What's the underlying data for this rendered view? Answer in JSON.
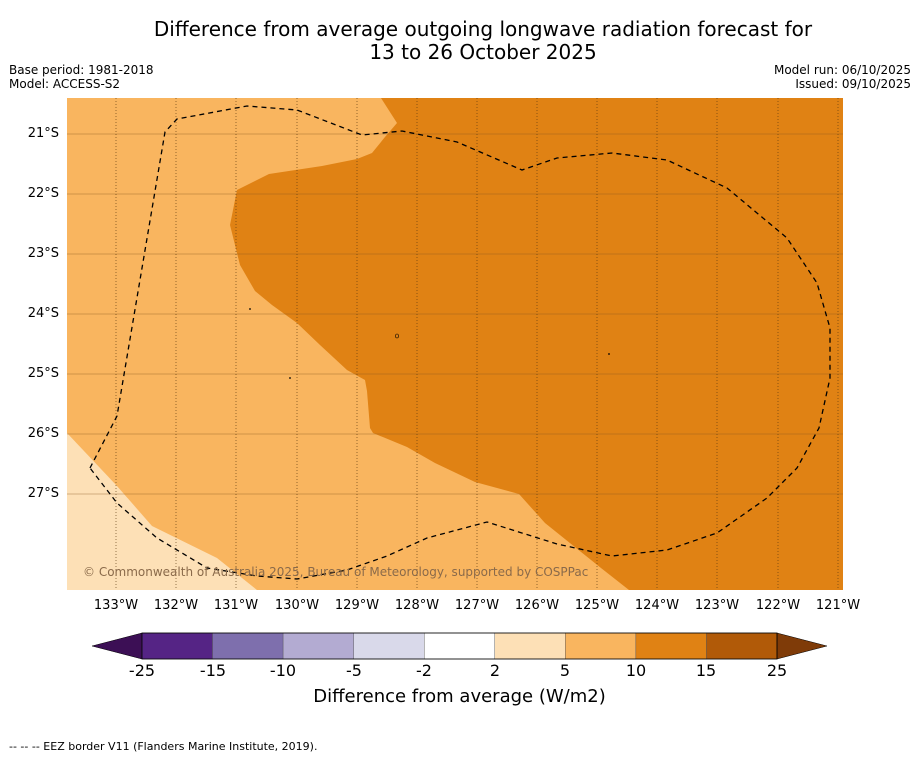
{
  "title": {
    "line1": "Difference from average outgoing longwave radiation forecast for",
    "line2": "13 to 26 October 2025"
  },
  "meta_left": {
    "base_period": "Base period: 1981-2018",
    "model": "Model: ACCESS-S2"
  },
  "meta_right": {
    "model_run": "Model run: 06/10/2025",
    "issued": "Issued: 09/10/2025"
  },
  "latitude_labels": [
    "21°S",
    "22°S",
    "23°S",
    "24°S",
    "25°S",
    "26°S",
    "27°S"
  ],
  "longitude_labels": [
    "133°W",
    "132°W",
    "131°W",
    "130°W",
    "129°W",
    "128°W",
    "127°W",
    "126°W",
    "125°W",
    "124°W",
    "123°W",
    "122°W",
    "121°W"
  ],
  "copyright": "© Commonwealth of Australia 2025, Bureau of Meteorology, supported by COSPPac",
  "colorbar": {
    "ticks": [
      "-25",
      "-15",
      "-10",
      "-5",
      "-2",
      "2",
      "5",
      "10",
      "15",
      "25"
    ],
    "colors": [
      "#3c0f55",
      "#552485",
      "#7e6fad",
      "#b3abd2",
      "#d9d9ea",
      "#ffffff",
      "#fde0b6",
      "#f9b55f",
      "#e08214",
      "#b15a08",
      "#7f3b08"
    ],
    "label": "Difference from average (W/m2)"
  },
  "legend": {
    "eez": "--  --  -- EEZ border V11 (Flanders Marine Institute, 2019)."
  },
  "map": {
    "lat_range": [
      -28.5,
      -20.4
    ],
    "lon_range": [
      -133.8,
      -120.9
    ]
  }
}
